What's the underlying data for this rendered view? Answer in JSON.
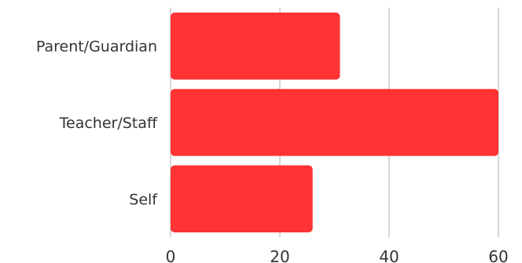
{
  "chart_data": {
    "type": "bar",
    "orientation": "horizontal",
    "categories": [
      "Parent/Guardian",
      "Teacher/Staff",
      "Self"
    ],
    "values": [
      31,
      60,
      26
    ],
    "xlim": [
      0,
      60
    ],
    "x_ticks": [
      0,
      20,
      40,
      60
    ],
    "grid": true,
    "colors": {
      "bar": "#ff3333"
    }
  }
}
